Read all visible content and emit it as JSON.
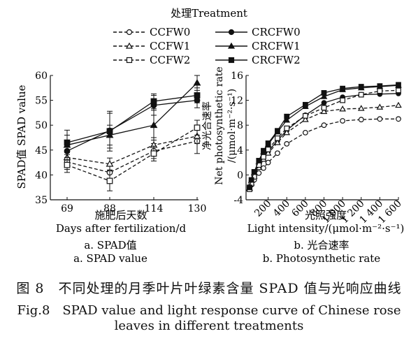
{
  "legend": {
    "title": "处理Treatment",
    "placement": "top-center",
    "entries": [
      {
        "label": "CCFW0",
        "line": "dashed",
        "marker": "circle-open"
      },
      {
        "label": "CRCFW0",
        "line": "solid",
        "marker": "circle-filled"
      },
      {
        "label": "CCFW1",
        "line": "dashed",
        "marker": "triangle-open"
      },
      {
        "label": "CRCFW1",
        "line": "solid",
        "marker": "triangle-filled"
      },
      {
        "label": "CCFW2",
        "line": "dashed",
        "marker": "square-open"
      },
      {
        "label": "CRCFW2",
        "line": "solid",
        "marker": "square-filled"
      }
    ]
  },
  "chart_data": [
    {
      "type": "line",
      "panel_label_cn": "a. SPAD值",
      "panel_label_en": "a. SPAD value",
      "xlabel_cn": "施肥后天数",
      "xlabel_en": "Days after fertilization/d",
      "ylabel": "SPAD值  SPAD value",
      "x": [
        69,
        88,
        114,
        130
      ],
      "xticks": [
        "69",
        "88",
        "114",
        "130"
      ],
      "ylim": [
        35,
        60
      ],
      "yticks": [
        35,
        40,
        45,
        50,
        55,
        60
      ],
      "grid": false,
      "series": [
        {
          "name": "CCFW0",
          "values": [
            42.6,
            40.5,
            44.8,
            46.8
          ],
          "err": [
            1.5,
            1.5,
            1.5,
            2.5
          ]
        },
        {
          "name": "CRCFW0",
          "values": [
            44.8,
            48.9,
            54.0,
            55.0
          ],
          "err": [
            1.5,
            3.5,
            2.0,
            1.5
          ]
        },
        {
          "name": "CCFW1",
          "values": [
            43.5,
            42.2,
            46.0,
            47.8
          ],
          "err": [
            1.0,
            1.2,
            1.5,
            1.5
          ]
        },
        {
          "name": "CRCFW1",
          "values": [
            46.0,
            48.0,
            50.0,
            58.5
          ],
          "err": [
            3.0,
            2.0,
            3.0,
            1.5
          ]
        },
        {
          "name": "CCFW2",
          "values": [
            42.0,
            38.8,
            44.3,
            49.5
          ],
          "err": [
            1.5,
            2.0,
            1.5,
            1.5
          ]
        },
        {
          "name": "CRCFW2",
          "values": [
            46.5,
            48.8,
            54.8,
            56.0
          ],
          "err": [
            1.5,
            4.0,
            1.5,
            1.5
          ]
        }
      ]
    },
    {
      "type": "line",
      "panel_label_cn": "b. 光合速率",
      "panel_label_en": "b. Photosynthetic rate",
      "xlabel_cn": "光照强度",
      "xlabel_en": "Light intensity/(μmol·m⁻²·s⁻¹)",
      "ylabel_cn": "净光合速率",
      "ylabel_en1": "Net photosynthetic rate",
      "ylabel_en2": "/(μmol·m⁻²·s⁻¹)",
      "x": [
        0,
        20,
        50,
        100,
        150,
        200,
        300,
        400,
        600,
        800,
        1000,
        1200,
        1400,
        1600
      ],
      "xlim": [
        0,
        1600
      ],
      "xticks": [
        "200",
        "400",
        "600",
        "800",
        "1 000",
        "1 200",
        "1 400",
        "1 600"
      ],
      "ylim": [
        -4,
        16
      ],
      "yticks": [
        "-4",
        "0",
        "4",
        "8",
        "12",
        "16"
      ],
      "grid": false,
      "series": [
        {
          "name": "CCFW0",
          "values": [
            -2.2,
            -1.6,
            -0.8,
            0.3,
            1.1,
            2.0,
            3.5,
            5.0,
            6.8,
            8.0,
            8.7,
            8.9,
            9.0,
            9.0
          ]
        },
        {
          "name": "CRCFW0",
          "values": [
            -2.0,
            -1.0,
            0.1,
            1.6,
            2.8,
            3.8,
            5.5,
            7.2,
            9.6,
            11.6,
            12.5,
            12.9,
            13.0,
            13.1
          ]
        },
        {
          "name": "CCFW1",
          "values": [
            -2.2,
            -1.3,
            -0.2,
            1.2,
            2.5,
            3.5,
            5.2,
            6.8,
            8.9,
            10.2,
            10.6,
            10.7,
            10.9,
            11.2
          ]
        },
        {
          "name": "CRCFW1",
          "values": [
            -2.1,
            -0.9,
            0.3,
            2.1,
            3.7,
            4.9,
            6.9,
            8.8,
            11.0,
            12.6,
            13.7,
            14.0,
            14.2,
            14.4
          ]
        },
        {
          "name": "CCFW2",
          "values": [
            -2.3,
            -1.4,
            -0.3,
            1.6,
            2.9,
            4.1,
            5.9,
            7.5,
            9.5,
            10.8,
            12.0,
            12.9,
            13.5,
            13.6
          ]
        },
        {
          "name": "CRCFW2",
          "values": [
            -2.0,
            -0.8,
            0.5,
            2.3,
            3.9,
            5.1,
            7.1,
            9.4,
            11.3,
            13.2,
            13.9,
            14.2,
            14.3,
            14.5
          ]
        }
      ]
    }
  ],
  "caption": {
    "cn": "图 8　不同处理的月季叶片叶绿素含量 SPAD 值与光响应曲线",
    "en_line1": "Fig.8　SPAD value and light response curve of Chinese rose",
    "en_line2": "leaves in different treatments"
  }
}
